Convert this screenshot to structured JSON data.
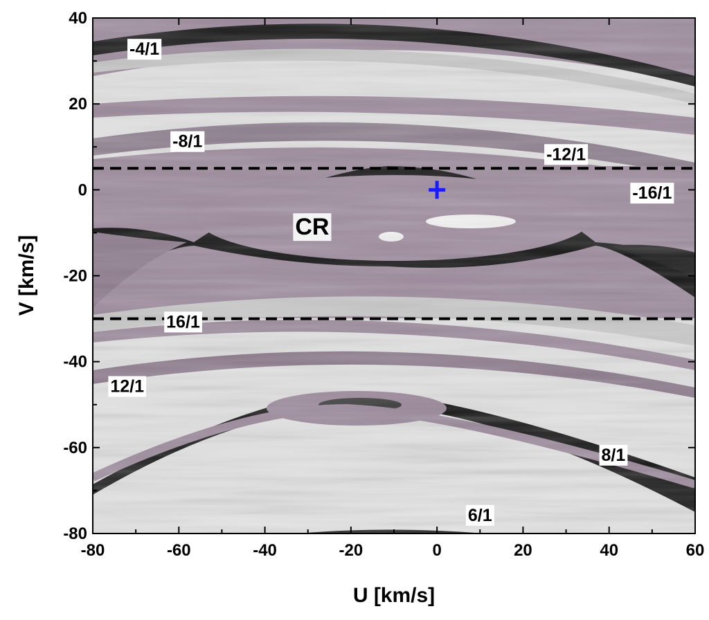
{
  "chart_data": {
    "type": "heatmap",
    "xlabel": "U [km/s]",
    "ylabel": "V [km/s]",
    "xlim": [
      -80,
      60
    ],
    "ylim": [
      -80,
      40
    ],
    "x_ticks": [
      "-80",
      "-60",
      "-40",
      "-20",
      "0",
      "20",
      "40",
      "60"
    ],
    "y_ticks": [
      "40",
      "20",
      "0",
      "-20",
      "-40",
      "-60",
      "-80"
    ],
    "x_tick_values": [
      -80,
      -60,
      -40,
      -20,
      0,
      20,
      40,
      60
    ],
    "y_tick_values": [
      40,
      20,
      0,
      -20,
      -40,
      -60,
      -80
    ],
    "dashed_lines_v": [
      5,
      -30
    ],
    "marker": {
      "u": 0,
      "v": 0,
      "symbol": "plus",
      "color": "#1a1aff"
    },
    "resonance_labels": [
      {
        "text": "-4/1",
        "u": -68,
        "v": 32.5
      },
      {
        "text": "-8/1",
        "u": -58,
        "v": 11
      },
      {
        "text": "-12/1",
        "u": 30,
        "v": 8
      },
      {
        "text": "-16/1",
        "u": 50,
        "v": -1
      },
      {
        "text": "CR",
        "u": -29,
        "v": -9
      },
      {
        "text": "16/1",
        "u": -59,
        "v": -31
      },
      {
        "text": "12/1",
        "u": -72,
        "v": -46
      },
      {
        "text": "8/1",
        "u": 41,
        "v": -62
      },
      {
        "text": "6/1",
        "u": 10,
        "v": -76
      }
    ],
    "colors": {
      "purple": "#9c8a9c",
      "light": "#e0e0e0",
      "gray": "#8a8a8a",
      "dark": "#111111",
      "marker": "#1a1aff"
    }
  }
}
